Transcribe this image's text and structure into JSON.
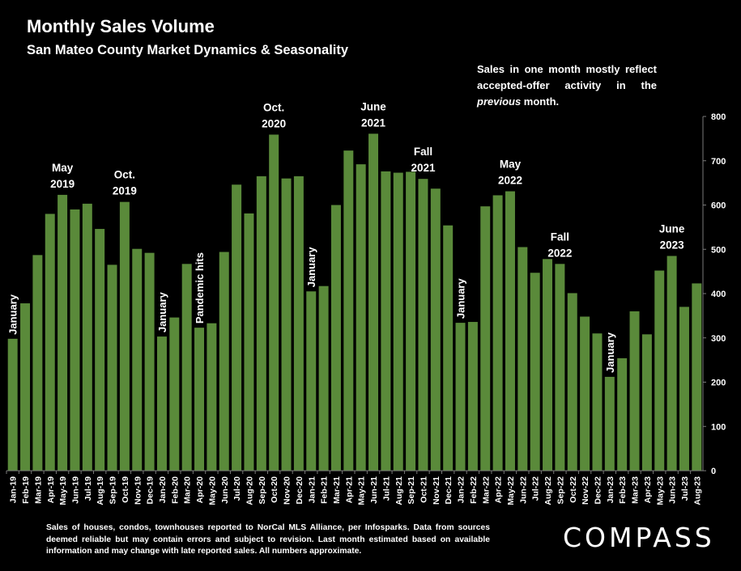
{
  "header": {
    "title": "Monthly Sales Volume",
    "subtitle": "San Mateo County Market Dynamics & Seasonality"
  },
  "note": {
    "prefix": "Sales in one month mostly reflect accepted-offer activity in the ",
    "emphasis": "previous",
    "suffix": " month."
  },
  "footer": {
    "text": "Sales of houses, condos, townhouses reported to NorCal MLS Alliance, per Infosparks. Data from sources deemed reliable but may contain errors and subject to revision. Last month estimated based on available information and may change with late reported sales. All numbers approximate."
  },
  "brand": {
    "logo": "COMPASS"
  },
  "colors": {
    "bar": "#5a8a3a",
    "background": "#000000",
    "text": "#ffffff",
    "grid": "#7a7a7a"
  },
  "chart_data": {
    "type": "bar",
    "title": "Monthly Sales Volume",
    "ylim": [
      0,
      800
    ],
    "yticks": [
      0,
      100,
      200,
      300,
      400,
      500,
      600,
      700,
      800
    ],
    "y_axis_side": "right",
    "grid": false,
    "categories": [
      "Jan-19",
      "Feb-19",
      "Mar-19",
      "Apr-19",
      "May-19",
      "Jun-19",
      "Jul-19",
      "Aug-19",
      "Sep-19",
      "Oct-19",
      "Nov-19",
      "Dec-19",
      "Jan-20",
      "Feb-20",
      "Mar-20",
      "Apr-20",
      "May-20",
      "Jun-20",
      "Jul-20",
      "Aug-20",
      "Sep-20",
      "Oct-20",
      "Nov-20",
      "Dec-20",
      "Jan-21",
      "Feb-21",
      "Mar-21",
      "Apr-21",
      "May-21",
      "Jun-21",
      "Jul-21",
      "Aug-21",
      "Sep-21",
      "Oct-21",
      "Nov-21",
      "Dec-21",
      "Jan-22",
      "Feb-22",
      "Mar-22",
      "Apr-22",
      "May-22",
      "Jun-22",
      "Jul-22",
      "Aug-22",
      "Sep-22",
      "Oct-22",
      "Nov-22",
      "Dec-22",
      "Jan-23",
      "Feb-23",
      "Mar-23",
      "Apr-23",
      "May-23",
      "Jun-23",
      "Jul-23",
      "Aug-23"
    ],
    "values": [
      298,
      378,
      487,
      580,
      623,
      590,
      603,
      546,
      465,
      607,
      501,
      492,
      303,
      346,
      467,
      323,
      333,
      494,
      646,
      581,
      665,
      759,
      660,
      665,
      405,
      417,
      600,
      723,
      692,
      761,
      676,
      673,
      675,
      659,
      637,
      554,
      334,
      336,
      597,
      622,
      631,
      505,
      447,
      478,
      467,
      401,
      348,
      310,
      212,
      254,
      360,
      308,
      452,
      485,
      370,
      423
    ],
    "annotations": [
      {
        "index": 0,
        "text": "January",
        "rotate": true
      },
      {
        "index": 4,
        "text": "May 2019",
        "rotate": false
      },
      {
        "index": 9,
        "text": "Oct. 2019",
        "rotate": false
      },
      {
        "index": 12,
        "text": "January",
        "rotate": true
      },
      {
        "index": 15,
        "text": "Pandemic hits",
        "rotate": true
      },
      {
        "index": 21,
        "text": "Oct. 2020",
        "rotate": false
      },
      {
        "index": 24,
        "text": "January",
        "rotate": true
      },
      {
        "index": 29,
        "text": "June 2021",
        "rotate": false
      },
      {
        "index": 33,
        "text": "Fall 2021",
        "rotate": false
      },
      {
        "index": 36,
        "text": "January",
        "rotate": true
      },
      {
        "index": 40,
        "text": "May 2022",
        "rotate": false
      },
      {
        "index": 44,
        "text": "Fall 2022",
        "rotate": false
      },
      {
        "index": 48,
        "text": "January",
        "rotate": true
      },
      {
        "index": 53,
        "text": "June 2023",
        "rotate": false
      }
    ]
  }
}
